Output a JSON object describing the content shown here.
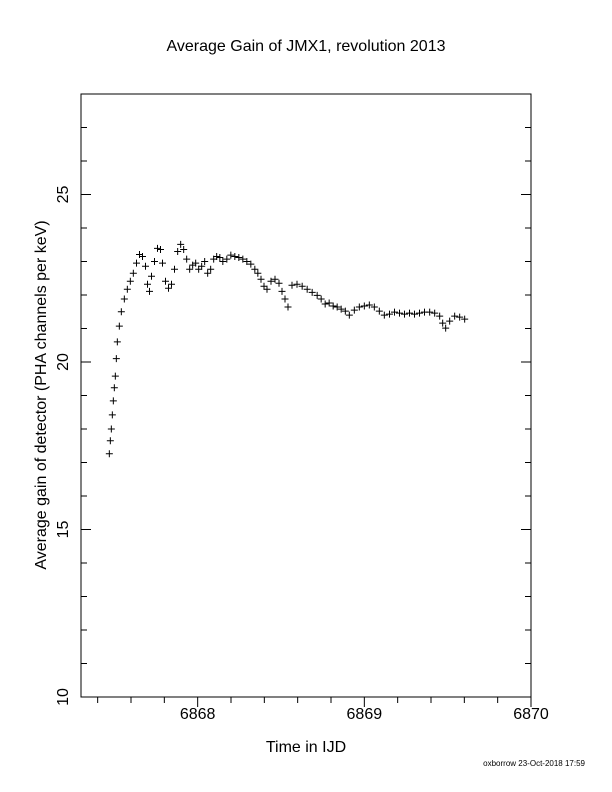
{
  "chart_data": {
    "type": "scatter",
    "title": "Average Gain of JMX1, revolution 2013",
    "x_label": "Time in IJD",
    "y_label": "Average gain of detector (PHA channels per keV)",
    "footer": "oxborrow 23-Oct-2018 17:59",
    "marker": "+",
    "color": "#000000",
    "xlim": [
      6867.3,
      6870
    ],
    "xticks": [
      6868,
      6869,
      6870
    ],
    "xminorticks": [
      6867.4,
      6867.6,
      6867.8,
      6868.2,
      6868.4,
      6868.6,
      6868.8,
      6869.2,
      6869.4,
      6869.6,
      6869.8
    ],
    "ylim": [
      10,
      28
    ],
    "yticks": [
      10,
      15,
      20,
      25
    ],
    "yminorticks": [
      11,
      12,
      13,
      14,
      16,
      17,
      18,
      19,
      21,
      22,
      23,
      24,
      26,
      27
    ],
    "x": [
      6867.47,
      6867.476,
      6867.482,
      6867.488,
      6867.494,
      6867.5,
      6867.506,
      6867.512,
      6867.518,
      6867.53,
      6867.542,
      6867.56,
      6867.578,
      6867.596,
      6867.614,
      6867.633,
      6867.651,
      6867.669,
      6867.687,
      6867.699,
      6867.711,
      6867.723,
      6867.741,
      6867.759,
      6867.777,
      6867.789,
      6867.807,
      6867.825,
      6867.843,
      6867.861,
      6867.88,
      6867.898,
      6867.916,
      6867.934,
      6867.952,
      6867.97,
      6867.988,
      6868.006,
      6868.024,
      6868.042,
      6868.06,
      6868.078,
      6868.096,
      6868.114,
      6868.133,
      6868.151,
      6868.175,
      6868.199,
      6868.223,
      6868.247,
      6868.271,
      6868.295,
      6868.319,
      6868.343,
      6868.361,
      6868.38,
      6868.398,
      6868.416,
      6868.44,
      6868.464,
      6868.488,
      6868.506,
      6868.524,
      6868.542,
      6868.566,
      6868.596,
      6868.627,
      6868.657,
      6868.687,
      6868.717,
      6868.741,
      6868.765,
      6868.789,
      6868.813,
      6868.837,
      6868.861,
      6868.886,
      6868.91,
      6868.94,
      6868.97,
      6869.0,
      6869.03,
      6869.06,
      6869.09,
      6869.12,
      6869.151,
      6869.181,
      6869.211,
      6869.241,
      6869.271,
      6869.301,
      6869.331,
      6869.361,
      6869.392,
      6869.422,
      6869.452,
      6869.47,
      6869.488,
      6869.512,
      6869.542,
      6869.572,
      6869.602
    ],
    "values": [
      17.26,
      17.65,
      18.0,
      18.42,
      18.84,
      19.23,
      19.58,
      20.1,
      20.6,
      21.07,
      21.5,
      21.88,
      22.17,
      22.41,
      22.65,
      22.95,
      23.21,
      23.15,
      22.86,
      22.32,
      22.11,
      22.56,
      23.0,
      23.39,
      23.36,
      22.95,
      22.41,
      22.2,
      22.32,
      22.77,
      23.3,
      23.51,
      23.36,
      23.07,
      22.77,
      22.89,
      22.95,
      22.77,
      22.86,
      23.0,
      22.65,
      22.77,
      23.07,
      23.15,
      23.12,
      23.0,
      23.07,
      23.19,
      23.15,
      23.12,
      23.07,
      23.0,
      22.92,
      22.77,
      22.65,
      22.47,
      22.26,
      22.17,
      22.41,
      22.47,
      22.35,
      22.11,
      21.88,
      21.64,
      22.29,
      22.32,
      22.26,
      22.17,
      22.08,
      21.99,
      21.88,
      21.73,
      21.76,
      21.67,
      21.64,
      21.58,
      21.52,
      21.4,
      21.55,
      21.64,
      21.67,
      21.7,
      21.64,
      21.52,
      21.4,
      21.43,
      21.49,
      21.46,
      21.43,
      21.46,
      21.43,
      21.46,
      21.49,
      21.49,
      21.46,
      21.37,
      21.16,
      21.01,
      21.22,
      21.37,
      21.34,
      21.28
    ]
  }
}
